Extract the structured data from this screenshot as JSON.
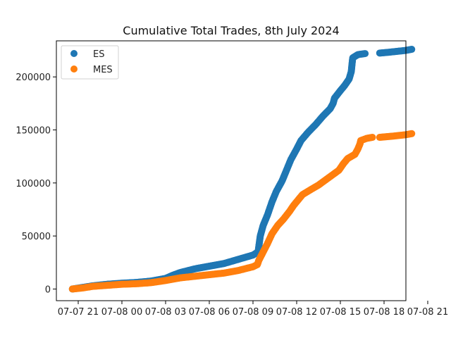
{
  "chart_data": {
    "type": "scatter",
    "title": "Cumulative Total Trades, 8th July 2024",
    "xlabel": "",
    "ylabel": "",
    "x_unit": "hours",
    "xlim": [
      -1.5,
      22.5
    ],
    "ylim": [
      -11000,
      234000
    ],
    "x_ticks": [
      {
        "value": 0,
        "label": "07-07 21"
      },
      {
        "value": 3,
        "label": "07-08 00"
      },
      {
        "value": 6,
        "label": "07-08 03"
      },
      {
        "value": 9,
        "label": "07-08 06"
      },
      {
        "value": 12,
        "label": "07-08 09"
      },
      {
        "value": 15,
        "label": "07-08 12"
      },
      {
        "value": 18,
        "label": "07-08 15"
      },
      {
        "value": 21,
        "label": "07-08 18"
      },
      {
        "value": 24,
        "label": "07-08 21"
      }
    ],
    "y_ticks": [
      {
        "value": 0,
        "label": "0"
      },
      {
        "value": 50000,
        "label": "50000"
      },
      {
        "value": 100000,
        "label": "100000"
      },
      {
        "value": 150000,
        "label": "150000"
      },
      {
        "value": 200000,
        "label": "200000"
      }
    ],
    "grid": false,
    "legend_position": "top-left",
    "series": [
      {
        "name": "ES",
        "color": "#1f77b4",
        "segments": [
          [
            [
              -0.4,
              0
            ],
            [
              0.3,
              1500
            ],
            [
              1,
              3000
            ],
            [
              2,
              4500
            ],
            [
              3,
              5500
            ],
            [
              4,
              6200
            ],
            [
              5,
              7500
            ],
            [
              6,
              10000
            ],
            [
              6.5,
              13000
            ],
            [
              7,
              15500
            ],
            [
              8,
              19000
            ],
            [
              9,
              21500
            ],
            [
              10,
              24000
            ],
            [
              11,
              28000
            ],
            [
              12,
              32000
            ],
            [
              12.35,
              35000
            ],
            [
              12.4,
              40000
            ],
            [
              12.5,
              50000
            ],
            [
              12.7,
              60000
            ],
            [
              13,
              70000
            ],
            [
              13.3,
              82000
            ],
            [
              13.6,
              92000
            ],
            [
              14,
              102000
            ],
            [
              14.3,
              112000
            ],
            [
              14.6,
              122000
            ],
            [
              15,
              132000
            ],
            [
              15.3,
              140000
            ],
            [
              15.8,
              148000
            ],
            [
              16.3,
              155000
            ],
            [
              16.8,
              163000
            ],
            [
              17.3,
              170000
            ],
            [
              17.5,
              175000
            ],
            [
              17.6,
              180000
            ],
            [
              18,
              187000
            ],
            [
              18.3,
              192000
            ],
            [
              18.6,
              198000
            ],
            [
              18.75,
              205000
            ],
            [
              18.8,
              212000
            ],
            [
              18.85,
              218000
            ],
            [
              19.2,
              221000
            ],
            [
              19.7,
              222000
            ]
          ],
          [
            [
              20.7,
              222500
            ],
            [
              21.5,
              223500
            ],
            [
              22.5,
              225000
            ],
            [
              22.9,
              226000
            ]
          ]
        ]
      },
      {
        "name": "MES",
        "color": "#ff7f0e",
        "segments": [
          [
            [
              -0.4,
              0
            ],
            [
              0.3,
              1000
            ],
            [
              1,
              2500
            ],
            [
              2,
              3500
            ],
            [
              3,
              4500
            ],
            [
              4,
              5000
            ],
            [
              5,
              6000
            ],
            [
              6,
              8000
            ],
            [
              7,
              10500
            ],
            [
              8,
              12000
            ],
            [
              9,
              13500
            ],
            [
              10,
              15000
            ],
            [
              11,
              17500
            ],
            [
              12,
              21000
            ],
            [
              12.3,
              23000
            ],
            [
              12.4,
              27000
            ],
            [
              12.7,
              35000
            ],
            [
              13,
              43000
            ],
            [
              13.3,
              52000
            ],
            [
              13.7,
              60000
            ],
            [
              14.1,
              66000
            ],
            [
              14.5,
              73000
            ],
            [
              14.8,
              79000
            ],
            [
              15.1,
              84000
            ],
            [
              15.4,
              89000
            ],
            [
              16,
              94000
            ],
            [
              16.5,
              98000
            ],
            [
              17,
              103000
            ],
            [
              17.5,
              108000
            ],
            [
              17.9,
              112000
            ],
            [
              18.2,
              118000
            ],
            [
              18.5,
              123000
            ],
            [
              19,
              127000
            ],
            [
              19.2,
              132000
            ],
            [
              19.35,
              137000
            ],
            [
              19.4,
              140000
            ],
            [
              19.8,
              142000
            ],
            [
              20.2,
              143000
            ]
          ],
          [
            [
              20.7,
              143000
            ],
            [
              21.5,
              144000
            ],
            [
              22.5,
              145500
            ],
            [
              22.9,
              146500
            ]
          ]
        ]
      }
    ]
  }
}
